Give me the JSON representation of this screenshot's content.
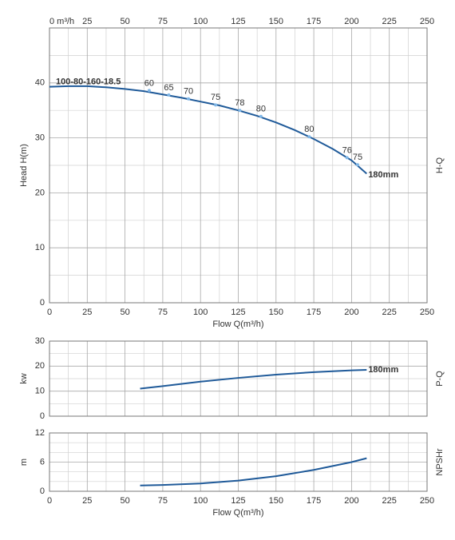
{
  "chart_data": [
    {
      "type": "line",
      "model": "100-80-160-18.5",
      "curve_label": "H-Q",
      "ylabel": "Head H(m)",
      "xlabel": "Flow Q(m³/h)",
      "x": [
        0,
        12.5,
        25,
        37.5,
        50,
        62.5,
        75,
        87.5,
        100,
        112.5,
        125,
        137.5,
        150,
        162.5,
        175,
        187.5,
        200,
        210
      ],
      "series": [
        {
          "name": "180mm",
          "color": "#1f5a99",
          "values": [
            39.3,
            39.4,
            39.4,
            39.2,
            38.9,
            38.5,
            37.9,
            37.3,
            36.6,
            35.9,
            35.0,
            34.0,
            32.8,
            31.4,
            29.8,
            28.0,
            25.9,
            23.5
          ]
        }
      ],
      "xlim": [
        0,
        250
      ],
      "xticks": [
        0,
        25,
        50,
        75,
        100,
        125,
        150,
        175,
        200,
        225,
        250
      ],
      "top_xticks": [
        {
          "value": 0,
          "label": "0 m³/h"
        },
        25,
        50,
        75,
        100,
        125,
        150,
        175,
        200,
        225,
        250
      ],
      "ylim": [
        0,
        50
      ],
      "yticks": [
        0,
        10,
        20,
        30,
        40
      ],
      "grid": true,
      "minor_divisions": 2,
      "annotations": [
        {
          "text": "60",
          "x": 66,
          "y": 38.6
        },
        {
          "text": "65",
          "x": 79,
          "y": 37.8
        },
        {
          "text": "70",
          "x": 92,
          "y": 37.1
        },
        {
          "text": "75",
          "x": 110,
          "y": 36.0
        },
        {
          "text": "78",
          "x": 126,
          "y": 35.0
        },
        {
          "text": "80",
          "x": 140,
          "y": 33.9
        },
        {
          "text": "80",
          "x": 172,
          "y": 30.2
        },
        {
          "text": "76",
          "x": 197,
          "y": 26.4
        },
        {
          "text": "75",
          "x": 204,
          "y": 25.1
        }
      ]
    },
    {
      "type": "line",
      "curve_label": "P-Q",
      "ylabel": "kw",
      "x": [
        60,
        75,
        100,
        125,
        150,
        175,
        200,
        210
      ],
      "series": [
        {
          "name": "180mm",
          "color": "#1f5a99",
          "values": [
            11,
            12,
            13.8,
            15.3,
            16.6,
            17.6,
            18.3,
            18.5
          ]
        }
      ],
      "xlim": [
        0,
        250
      ],
      "xticks": [
        0,
        25,
        50,
        75,
        100,
        125,
        150,
        175,
        200,
        225,
        250
      ],
      "show_xtick_labels": false,
      "ylim": [
        0,
        30
      ],
      "yticks": [
        0,
        10,
        20,
        30
      ],
      "grid": true,
      "minor_divisions": 2
    },
    {
      "type": "line",
      "curve_label": "NPSHr",
      "ylabel": "m",
      "xlabel": "Flow Q(m³/h)",
      "x": [
        60,
        75,
        100,
        125,
        150,
        175,
        200,
        210
      ],
      "series": [
        {
          "color": "#1f5a99",
          "values": [
            1.2,
            1.3,
            1.6,
            2.2,
            3.1,
            4.4,
            6.0,
            6.8
          ]
        }
      ],
      "xlim": [
        0,
        250
      ],
      "xticks": [
        0,
        25,
        50,
        75,
        100,
        125,
        150,
        175,
        200,
        225,
        250
      ],
      "ylim": [
        0,
        12
      ],
      "yticks": [
        0,
        6,
        12
      ],
      "grid": true,
      "minor_divisions": 3
    }
  ]
}
